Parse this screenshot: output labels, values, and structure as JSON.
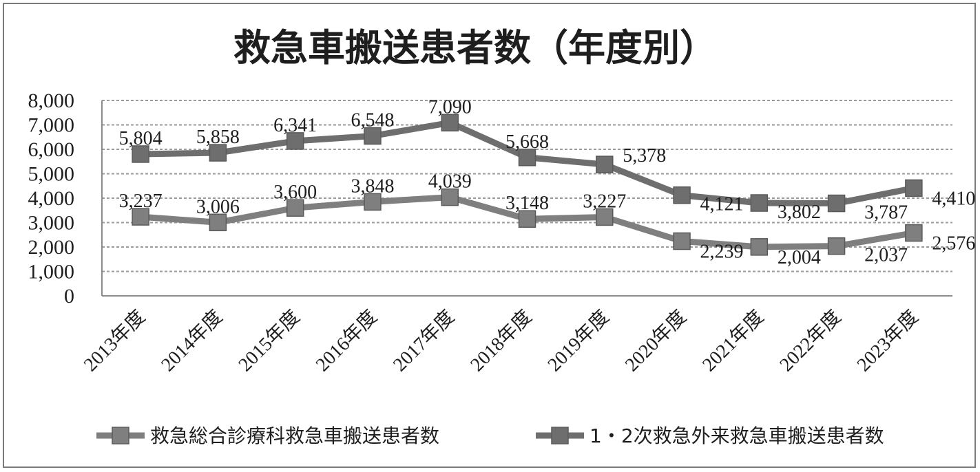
{
  "chart_data": {
    "type": "line",
    "title": "救急車搬送患者数（年度別）",
    "categories": [
      "2013年度",
      "2014年度",
      "2015年度",
      "2016年度",
      "2017年度",
      "2018年度",
      "2019年度",
      "2020年度",
      "2021年度",
      "2022年度",
      "2023年度"
    ],
    "yticks": [
      "0",
      "1,000",
      "2,000",
      "3,000",
      "4,000",
      "5,000",
      "6,000",
      "7,000",
      "8,000"
    ],
    "ylim": [
      0,
      8000
    ],
    "grid": true,
    "legend_position": "bottom",
    "series": [
      {
        "name": "救急総合診療科救急車搬送患者数",
        "values": [
          3237,
          3006,
          3600,
          3848,
          4039,
          3148,
          3227,
          2239,
          2004,
          2037,
          2576
        ],
        "labels": [
          "3,237",
          "3,006",
          "3,600",
          "3,848",
          "4,039",
          "3,148",
          "3,227",
          "2,239",
          "2,004",
          "2,037",
          "2,576"
        ],
        "color": "#7f7f7f"
      },
      {
        "name": "1・2次救急外来救急車搬送患者数",
        "values": [
          5804,
          5858,
          6341,
          6548,
          7090,
          5668,
          5378,
          4121,
          3802,
          3787,
          4410
        ],
        "labels": [
          "5,804",
          "5,858",
          "6,341",
          "6,548",
          "7,090",
          "5,668",
          "5,378",
          "4,121",
          "3,802",
          "3,787",
          "4,410"
        ],
        "color": "#6e6e6e"
      }
    ]
  }
}
